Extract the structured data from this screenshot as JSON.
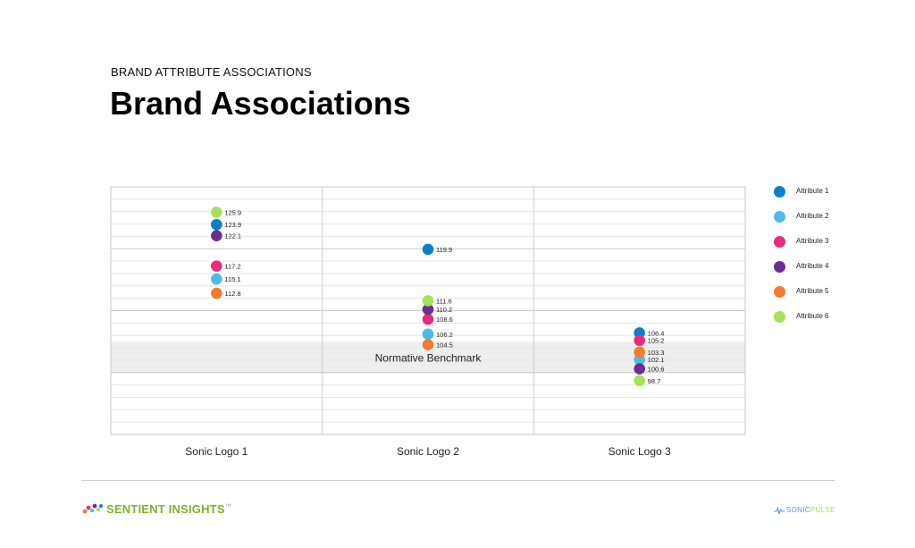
{
  "header": {
    "eyebrow": "BRAND ATTRIBUTE ASSOCIATIONS",
    "title": "Brand Associations"
  },
  "chart_data": {
    "type": "scatter",
    "categories": [
      "Sonic Logo 1",
      "Sonic Logo 2",
      "Sonic Logo 3"
    ],
    "series": [
      {
        "name": "Attribute 1",
        "color": "#0a80c8",
        "values": [
          123.9,
          119.9,
          106.4
        ]
      },
      {
        "name": "Attribute 2",
        "color": "#4cbbe8",
        "values": [
          115.1,
          106.2,
          102.1
        ]
      },
      {
        "name": "Attribute 3",
        "color": "#ea2a7e",
        "values": [
          117.2,
          108.6,
          105.2
        ]
      },
      {
        "name": "Attribute 4",
        "color": "#6a2e95",
        "values": [
          122.1,
          110.2,
          100.6
        ]
      },
      {
        "name": "Attribute 5",
        "color": "#f47b30",
        "values": [
          112.8,
          104.5,
          103.3
        ]
      },
      {
        "name": "Attribute 6",
        "color": "#a6e25a",
        "values": [
          125.9,
          111.6,
          98.7
        ]
      }
    ],
    "ylim": [
      90,
      130
    ],
    "benchmark": {
      "label": "Normative Benchmark",
      "range": [
        100,
        105
      ]
    },
    "legend_position": "right",
    "grid": true
  },
  "footer": {
    "brand_left": "SENTIENT INSIGHTS",
    "brand_left_mark": "™",
    "brand_right_a": "SONIC",
    "brand_right_b": "PULSE"
  }
}
